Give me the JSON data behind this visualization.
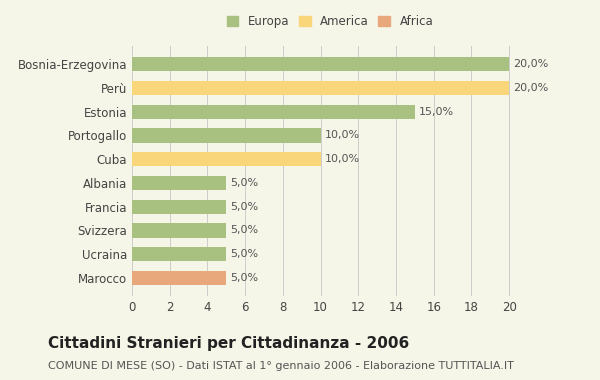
{
  "categories": [
    "Bosnia-Erzegovina",
    "Perù",
    "Estonia",
    "Portogallo",
    "Cuba",
    "Albania",
    "Francia",
    "Svizzera",
    "Ucraina",
    "Marocco"
  ],
  "values": [
    20.0,
    20.0,
    15.0,
    10.0,
    10.0,
    5.0,
    5.0,
    5.0,
    5.0,
    5.0
  ],
  "colors": [
    "#a8c080",
    "#f9d67a",
    "#a8c080",
    "#a8c080",
    "#f9d67a",
    "#a8c080",
    "#a8c080",
    "#a8c080",
    "#a8c080",
    "#e8a87c"
  ],
  "legend": [
    {
      "label": "Europa",
      "color": "#a8c080"
    },
    {
      "label": "America",
      "color": "#f9d67a"
    },
    {
      "label": "Africa",
      "color": "#e8a87c"
    }
  ],
  "xlim": [
    0,
    21
  ],
  "xticks": [
    0,
    2,
    4,
    6,
    8,
    10,
    12,
    14,
    16,
    18,
    20
  ],
  "title": "Cittadini Stranieri per Cittadinanza - 2006",
  "subtitle": "COMUNE DI MESE (SO) - Dati ISTAT al 1° gennaio 2006 - Elaborazione TUTTITALIA.IT",
  "title_fontsize": 11,
  "subtitle_fontsize": 8,
  "label_fontsize": 8.5,
  "bar_label_fontsize": 8,
  "background_color": "#f5f5e8",
  "grid_color": "#cccccc"
}
